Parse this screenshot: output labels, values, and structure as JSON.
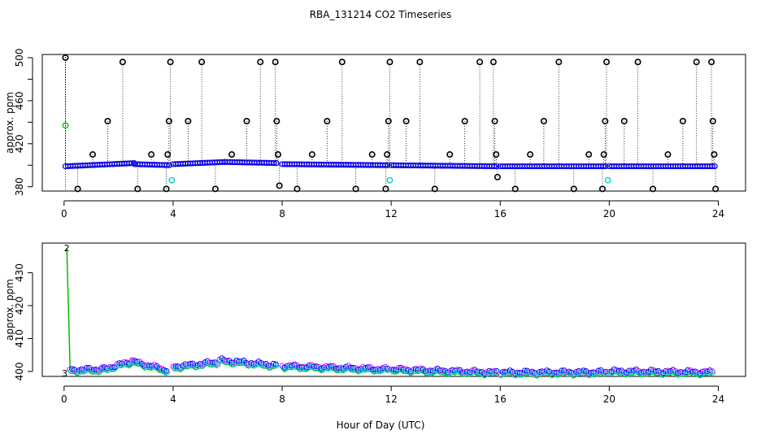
{
  "figure": {
    "title": "RBA_131214  CO2 Timeseries",
    "xlabel": "Hour of Day (UTC)"
  },
  "chart_data": [
    {
      "type": "scatter",
      "name": "top-panel",
      "ylabel": "approx. ppm",
      "xlim": [
        -0.8,
        25
      ],
      "ylim": [
        376,
        503
      ],
      "xticks": [
        0,
        4,
        8,
        12,
        16,
        20,
        24
      ],
      "yticks": [
        380,
        400,
        420,
        440,
        460,
        480,
        500
      ],
      "ytick_labels": [
        380,
        420,
        460,
        500
      ],
      "baseline_segments": [
        {
          "x0": 0.05,
          "x1": 2.6,
          "y0": 399,
          "y1": 402
        },
        {
          "x0": 2.6,
          "x1": 3.9,
          "y0": 401,
          "y1": 400
        },
        {
          "x0": 4.0,
          "x1": 5.9,
          "y0": 401,
          "y1": 403
        },
        {
          "x0": 5.9,
          "x1": 7.8,
          "y0": 403,
          "y1": 402
        },
        {
          "x0": 8.0,
          "x1": 11.9,
          "y0": 401,
          "y1": 400
        },
        {
          "x0": 12.0,
          "x1": 15.9,
          "y0": 400,
          "y1": 399
        },
        {
          "x0": 16.0,
          "x1": 19.9,
          "y0": 399,
          "y1": 399
        },
        {
          "x0": 20.0,
          "x1": 23.9,
          "y0": 399,
          "y1": 399
        }
      ],
      "spikes": [
        {
          "x": 0.05,
          "y": 500
        },
        {
          "x": 0.5,
          "y": 378
        },
        {
          "x": 1.05,
          "y": 410
        },
        {
          "x": 1.6,
          "y": 441
        },
        {
          "x": 2.15,
          "y": 496
        },
        {
          "x": 2.7,
          "y": 378
        },
        {
          "x": 3.2,
          "y": 410
        },
        {
          "x": 3.75,
          "y": 378
        },
        {
          "x": 3.8,
          "y": 410
        },
        {
          "x": 3.85,
          "y": 441
        },
        {
          "x": 3.9,
          "y": 496
        },
        {
          "x": 4.55,
          "y": 441
        },
        {
          "x": 5.05,
          "y": 496
        },
        {
          "x": 5.55,
          "y": 378
        },
        {
          "x": 6.15,
          "y": 410
        },
        {
          "x": 6.7,
          "y": 441
        },
        {
          "x": 7.2,
          "y": 496
        },
        {
          "x": 7.75,
          "y": 496
        },
        {
          "x": 7.8,
          "y": 441
        },
        {
          "x": 7.85,
          "y": 410
        },
        {
          "x": 7.9,
          "y": 381
        },
        {
          "x": 8.55,
          "y": 378
        },
        {
          "x": 9.1,
          "y": 410
        },
        {
          "x": 9.65,
          "y": 441
        },
        {
          "x": 10.2,
          "y": 496
        },
        {
          "x": 10.7,
          "y": 378
        },
        {
          "x": 11.3,
          "y": 410
        },
        {
          "x": 11.8,
          "y": 378
        },
        {
          "x": 11.85,
          "y": 410
        },
        {
          "x": 11.9,
          "y": 441
        },
        {
          "x": 11.95,
          "y": 496
        },
        {
          "x": 12.55,
          "y": 441
        },
        {
          "x": 13.05,
          "y": 496
        },
        {
          "x": 13.6,
          "y": 378
        },
        {
          "x": 14.15,
          "y": 410
        },
        {
          "x": 14.7,
          "y": 441
        },
        {
          "x": 15.25,
          "y": 496
        },
        {
          "x": 15.75,
          "y": 496
        },
        {
          "x": 15.8,
          "y": 441
        },
        {
          "x": 15.85,
          "y": 410
        },
        {
          "x": 15.9,
          "y": 389
        },
        {
          "x": 16.55,
          "y": 378
        },
        {
          "x": 17.1,
          "y": 410
        },
        {
          "x": 17.6,
          "y": 441
        },
        {
          "x": 18.15,
          "y": 496
        },
        {
          "x": 18.7,
          "y": 378
        },
        {
          "x": 19.25,
          "y": 410
        },
        {
          "x": 19.75,
          "y": 378
        },
        {
          "x": 19.8,
          "y": 410
        },
        {
          "x": 19.85,
          "y": 441
        },
        {
          "x": 19.9,
          "y": 496
        },
        {
          "x": 20.55,
          "y": 441
        },
        {
          "x": 21.05,
          "y": 496
        },
        {
          "x": 21.6,
          "y": 378
        },
        {
          "x": 22.15,
          "y": 410
        },
        {
          "x": 22.7,
          "y": 441
        },
        {
          "x": 23.2,
          "y": 496
        },
        {
          "x": 23.75,
          "y": 496
        },
        {
          "x": 23.8,
          "y": 441
        },
        {
          "x": 23.85,
          "y": 410
        },
        {
          "x": 23.9,
          "y": 378
        }
      ],
      "cyan_points": [
        {
          "x": 3.95,
          "y": 386
        },
        {
          "x": 11.95,
          "y": 386
        },
        {
          "x": 19.95,
          "y": 386
        }
      ],
      "green_points": [
        {
          "x": 0.05,
          "y": 437
        }
      ]
    },
    {
      "type": "line",
      "name": "bottom-panel",
      "ylabel": "approx. ppm",
      "xlim": [
        -0.8,
        25
      ],
      "ylim": [
        398.5,
        439
      ],
      "xticks": [
        0,
        4,
        8,
        12,
        16,
        20,
        24
      ],
      "yticks": [
        400,
        410,
        420,
        430
      ],
      "initial_spike": {
        "x0": 0.1,
        "y0": 437.5,
        "x1": 0.22,
        "y1": 401,
        "label": "2"
      },
      "start_marker": {
        "x": 0.02,
        "y": 399.5,
        "label": "3"
      },
      "segments": [
        {
          "x0": 0.2,
          "x1": 1.4,
          "y0": 400.5,
          "y1": 400.8,
          "bump": 0.0
        },
        {
          "x0": 1.4,
          "x1": 2.5,
          "y0": 400.8,
          "y1": 403.2,
          "bump": 0.0
        },
        {
          "x0": 2.5,
          "x1": 3.8,
          "y0": 403.2,
          "y1": 400.5,
          "bump": 0.0
        },
        {
          "x0": 4.0,
          "x1": 5.7,
          "y0": 401.5,
          "y1": 403.0,
          "bump": 0.0
        },
        {
          "x0": 5.7,
          "x1": 7.8,
          "y0": 403.5,
          "y1": 402.0,
          "bump": 0.0
        },
        {
          "x0": 8.0,
          "x1": 11.9,
          "y0": 401.8,
          "y1": 400.8,
          "bump": 0.0
        },
        {
          "x0": 12.0,
          "x1": 15.9,
          "y0": 400.8,
          "y1": 399.8,
          "bump": 0.0
        },
        {
          "x0": 16.0,
          "x1": 19.9,
          "y0": 399.8,
          "y1": 399.9,
          "bump": 0.0
        },
        {
          "x0": 20.0,
          "x1": 23.8,
          "y0": 400.2,
          "y1": 399.9,
          "bump": 0.0
        }
      ]
    }
  ]
}
